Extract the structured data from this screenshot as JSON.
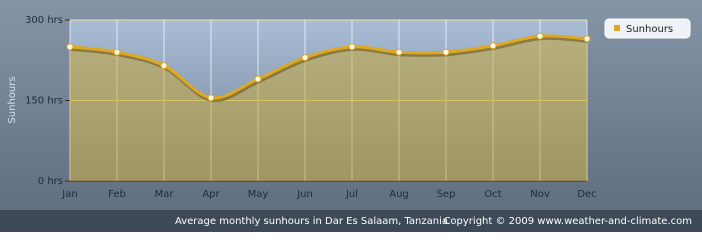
{
  "chart_data": {
    "type": "line",
    "categories": [
      "Jan",
      "Feb",
      "Mar",
      "Apr",
      "May",
      "Jun",
      "Jul",
      "Aug",
      "Sep",
      "Oct",
      "Nov",
      "Dec"
    ],
    "series": [
      {
        "name": "Sunhours",
        "color": "#e0a820",
        "values": [
          250,
          240,
          215,
          155,
          190,
          230,
          250,
          240,
          240,
          252,
          270,
          265
        ]
      }
    ],
    "y_label": "Sunhours",
    "ylim": [
      0,
      300
    ],
    "yticks": [
      {
        "value": 0,
        "label": "0 hrs"
      },
      {
        "value": 150,
        "label": "150 hrs"
      },
      {
        "value": 300,
        "label": "300 hrs"
      }
    ],
    "grid": true,
    "legend": "top-right",
    "caption": "Average monthly sunhours in Dar Es Salaam, Tanzania",
    "copyright": "Copyright © 2009 www.weather-and-climate.com"
  }
}
